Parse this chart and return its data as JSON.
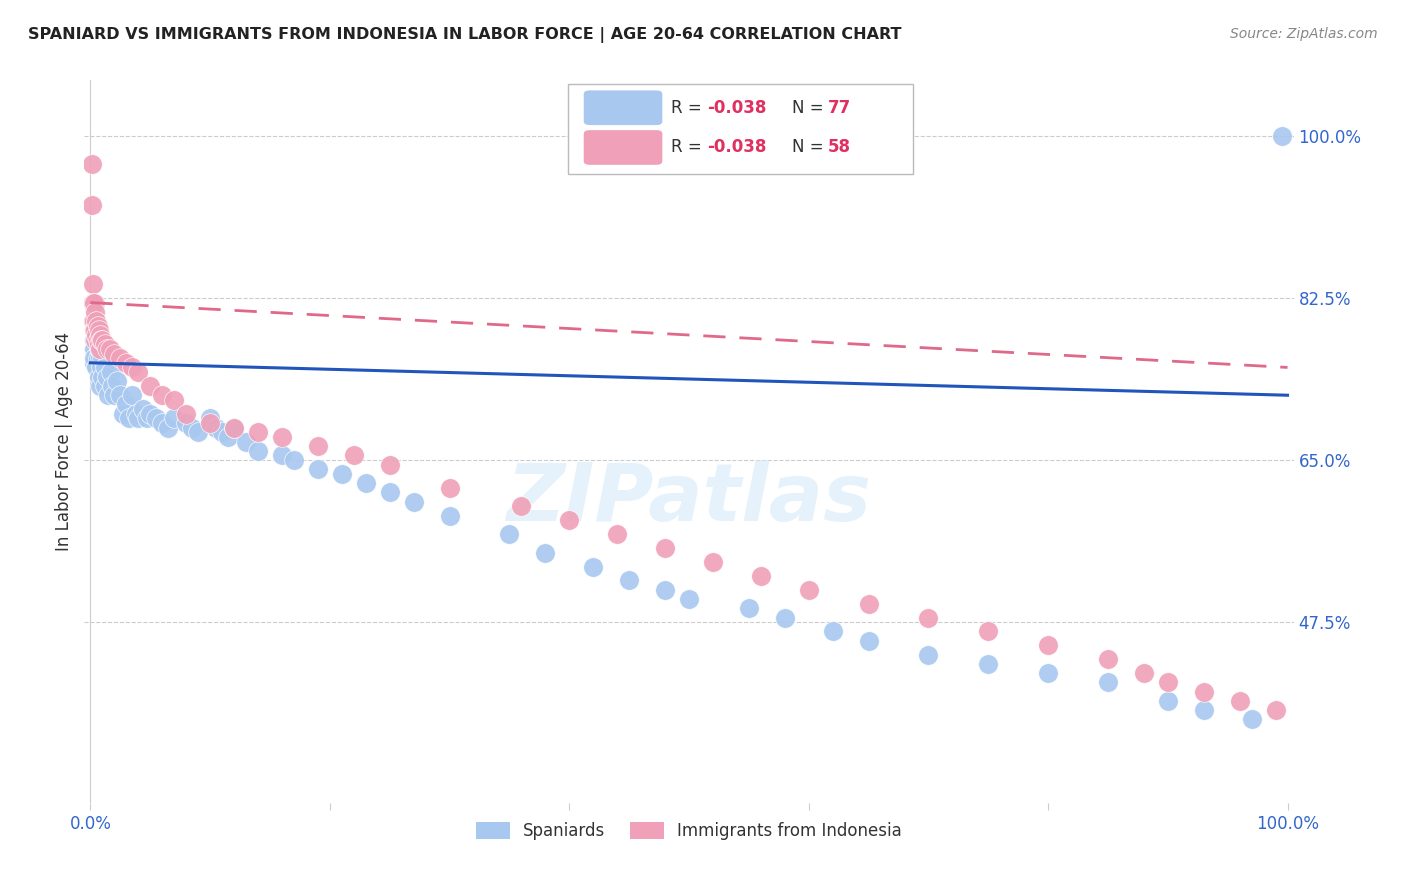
{
  "title": "SPANIARD VS IMMIGRANTS FROM INDONESIA IN LABOR FORCE | AGE 20-64 CORRELATION CHART",
  "source": "Source: ZipAtlas.com",
  "ylabel": "In Labor Force | Age 20-64",
  "ytick_labels": [
    "100.0%",
    "82.5%",
    "65.0%",
    "47.5%"
  ],
  "ytick_values": [
    1.0,
    0.825,
    0.65,
    0.475
  ],
  "blue_color": "#a8c8f0",
  "pink_color": "#f0a0b8",
  "blue_line_color": "#2255bb",
  "pink_line_color": "#e06888",
  "legend_r1": "-0.038",
  "legend_n1": "77",
  "legend_r2": "-0.038",
  "legend_n2": "58",
  "watermark": "ZIPatlas",
  "background_color": "#ffffff",
  "grid_color": "#cccccc",
  "spaniards_x": [
    0.003,
    0.003,
    0.003,
    0.003,
    0.004,
    0.004,
    0.005,
    0.005,
    0.005,
    0.006,
    0.006,
    0.007,
    0.007,
    0.008,
    0.008,
    0.009,
    0.009,
    0.01,
    0.01,
    0.012,
    0.012,
    0.014,
    0.015,
    0.017,
    0.018,
    0.02,
    0.022,
    0.025,
    0.027,
    0.03,
    0.032,
    0.035,
    0.038,
    0.04,
    0.044,
    0.047,
    0.05,
    0.055,
    0.06,
    0.065,
    0.07,
    0.08,
    0.085,
    0.09,
    0.1,
    0.105,
    0.11,
    0.115,
    0.12,
    0.13,
    0.14,
    0.16,
    0.17,
    0.19,
    0.21,
    0.23,
    0.25,
    0.27,
    0.3,
    0.35,
    0.38,
    0.42,
    0.45,
    0.48,
    0.5,
    0.55,
    0.58,
    0.62,
    0.65,
    0.7,
    0.75,
    0.8,
    0.85,
    0.9,
    0.93,
    0.97,
    0.995
  ],
  "spaniards_y": [
    0.78,
    0.755,
    0.77,
    0.76,
    0.82,
    0.79,
    0.8,
    0.78,
    0.75,
    0.79,
    0.76,
    0.77,
    0.74,
    0.76,
    0.73,
    0.77,
    0.75,
    0.76,
    0.74,
    0.75,
    0.73,
    0.74,
    0.72,
    0.745,
    0.73,
    0.72,
    0.735,
    0.72,
    0.7,
    0.71,
    0.695,
    0.72,
    0.7,
    0.695,
    0.705,
    0.695,
    0.7,
    0.695,
    0.69,
    0.685,
    0.695,
    0.69,
    0.685,
    0.68,
    0.695,
    0.685,
    0.68,
    0.675,
    0.685,
    0.67,
    0.66,
    0.655,
    0.65,
    0.64,
    0.635,
    0.625,
    0.615,
    0.605,
    0.59,
    0.57,
    0.55,
    0.535,
    0.52,
    0.51,
    0.5,
    0.49,
    0.48,
    0.465,
    0.455,
    0.44,
    0.43,
    0.42,
    0.41,
    0.39,
    0.38,
    0.37,
    1.0
  ],
  "indonesia_x": [
    0.001,
    0.001,
    0.002,
    0.002,
    0.002,
    0.003,
    0.003,
    0.003,
    0.004,
    0.004,
    0.004,
    0.005,
    0.005,
    0.006,
    0.006,
    0.007,
    0.007,
    0.008,
    0.008,
    0.009,
    0.01,
    0.012,
    0.014,
    0.016,
    0.02,
    0.025,
    0.03,
    0.035,
    0.04,
    0.05,
    0.06,
    0.07,
    0.08,
    0.1,
    0.12,
    0.14,
    0.16,
    0.19,
    0.22,
    0.25,
    0.3,
    0.36,
    0.4,
    0.44,
    0.48,
    0.52,
    0.56,
    0.6,
    0.65,
    0.7,
    0.75,
    0.8,
    0.85,
    0.88,
    0.9,
    0.93,
    0.96,
    0.99
  ],
  "indonesia_y": [
    0.97,
    0.925,
    0.84,
    0.82,
    0.8,
    0.82,
    0.8,
    0.79,
    0.81,
    0.79,
    0.78,
    0.8,
    0.785,
    0.795,
    0.78,
    0.79,
    0.775,
    0.785,
    0.77,
    0.78,
    0.78,
    0.775,
    0.77,
    0.77,
    0.765,
    0.76,
    0.755,
    0.75,
    0.745,
    0.73,
    0.72,
    0.715,
    0.7,
    0.69,
    0.685,
    0.68,
    0.675,
    0.665,
    0.655,
    0.645,
    0.62,
    0.6,
    0.585,
    0.57,
    0.555,
    0.54,
    0.525,
    0.51,
    0.495,
    0.48,
    0.465,
    0.45,
    0.435,
    0.42,
    0.41,
    0.4,
    0.39,
    0.38
  ]
}
